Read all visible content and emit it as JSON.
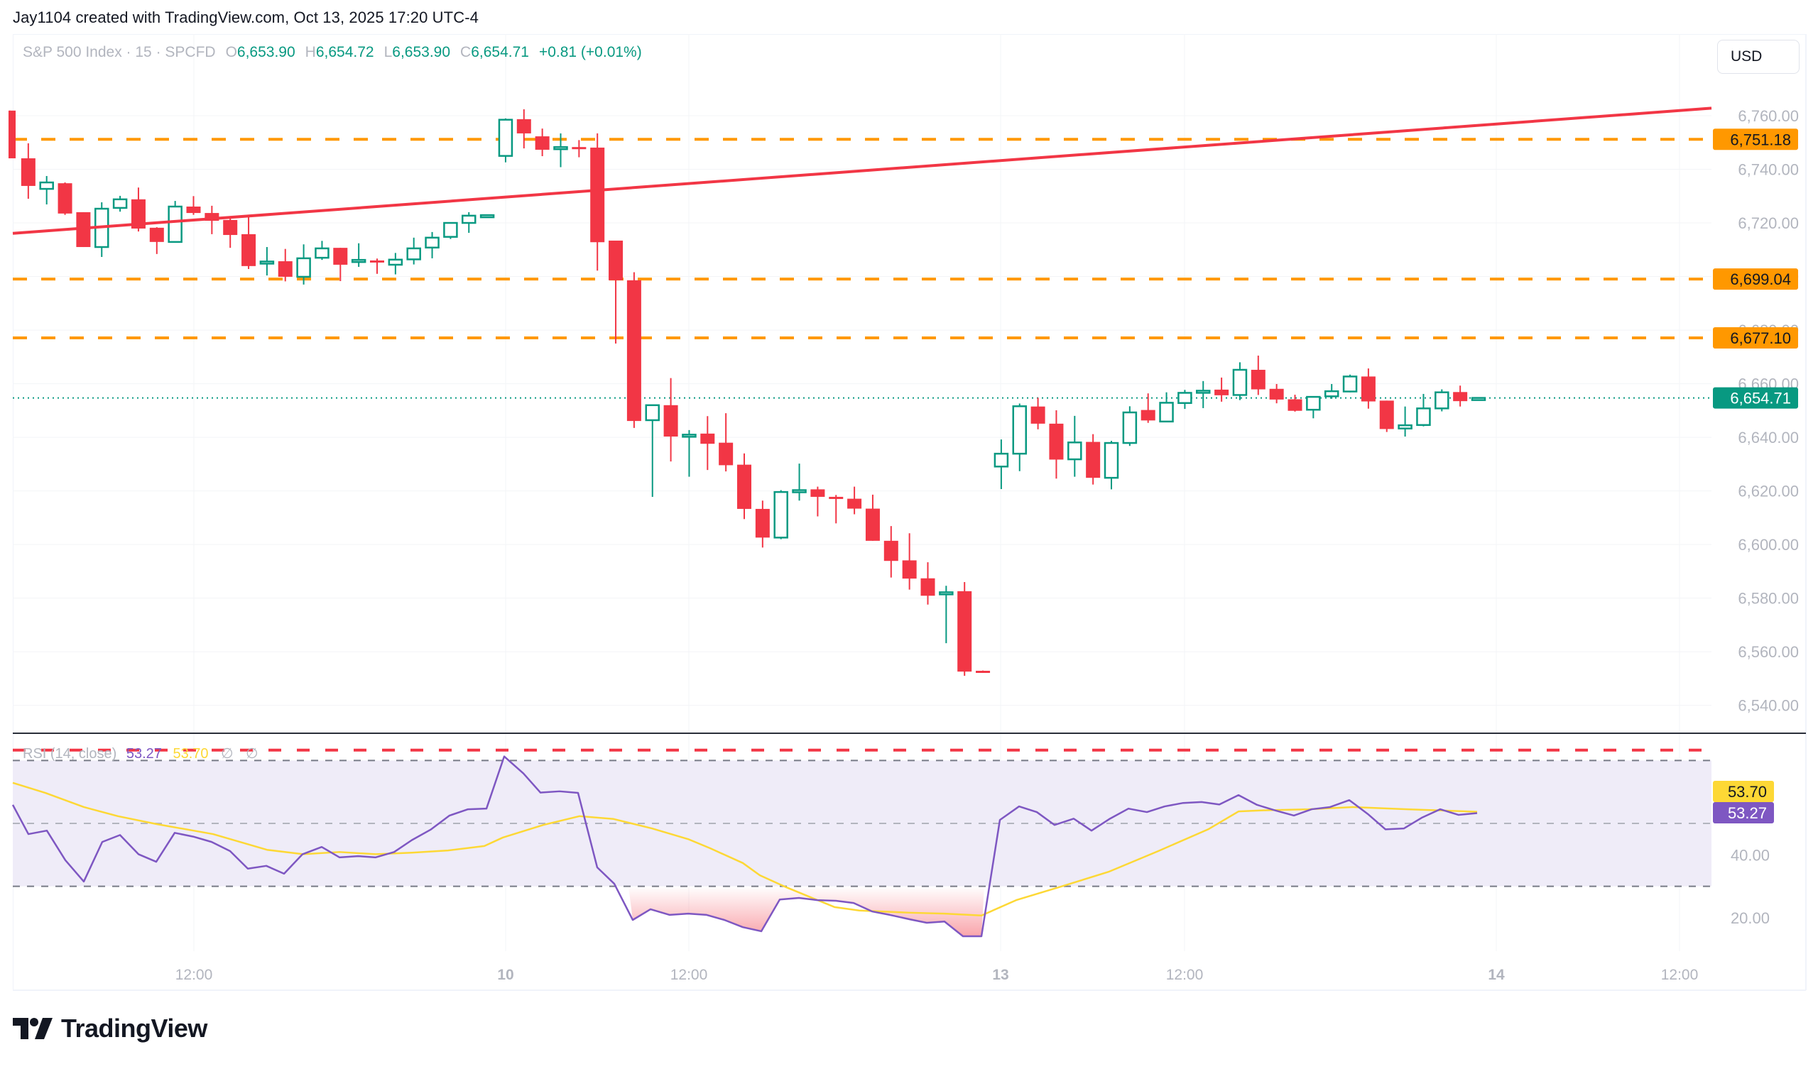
{
  "credit": "Jay1104 created with TradingView.com, Oct 13, 2025 17:20 UTC-4",
  "legend": {
    "symbol": "S&P 500 Index · 15 · SPCFD",
    "open_key": "O",
    "open": "6,653.90",
    "high_key": "H",
    "high": "6,654.72",
    "low_key": "L",
    "low": "6,653.90",
    "close_key": "C",
    "close": "6,654.71",
    "change": "+0.81 (+0.01%)"
  },
  "currency_button": "USD",
  "rsi_legend": {
    "title": "RSI (14, close)",
    "rsi_value": "53.27",
    "signal_value": "53.70",
    "extra1": "∅",
    "extra2": "∅"
  },
  "brand": {
    "name": "TradingView"
  },
  "colors": {
    "up": "#089981",
    "down": "#f23645",
    "trendline": "#f23645",
    "level": "#ff9800",
    "rsi": "#7e57c2",
    "signal": "#fdd835",
    "rsi_band": "#efecf8",
    "last_price": "#089981"
  },
  "chart_data": [
    {
      "type": "candlestick",
      "title": "S&P 500 Index · 15 · SPCFD",
      "interval": "15",
      "ylabel": "USD",
      "ylim": [
        6530,
        6775
      ],
      "y_ticks": [
        6540,
        6560,
        6580,
        6600,
        6620,
        6640,
        6660,
        6680,
        6700,
        6720,
        6740,
        6760
      ],
      "y_tick_labels": [
        "6,540.00",
        "6,560.00",
        "6,580.00",
        "6,600.00",
        "6,620.00",
        "6,640.00",
        "6,660.00",
        "6,680.00",
        "6,700.00",
        "6,720.00",
        "6,740.00",
        "6,760.00"
      ],
      "x_tick_labels": [
        {
          "label": "12:00",
          "x": 273,
          "bold": false
        },
        {
          "label": "10",
          "x": 712,
          "bold": true
        },
        {
          "label": "12:00",
          "x": 970,
          "bold": false
        },
        {
          "label": "13",
          "x": 1409,
          "bold": true
        },
        {
          "label": "12:00",
          "x": 1668,
          "bold": false
        },
        {
          "label": "14",
          "x": 2107,
          "bold": true
        },
        {
          "label": "12:00",
          "x": 2365,
          "bold": false
        }
      ],
      "grid": true,
      "candles_ohlc": [
        [
          6761.9,
          6761.9,
          6744.1,
          6744.1
        ],
        [
          6744.1,
          6749.7,
          6729.0,
          6733.8
        ],
        [
          6732.7,
          6737.5,
          6726.9,
          6735.1
        ],
        [
          6734.8,
          6735.1,
          6723.0,
          6723.5
        ],
        [
          6724.0,
          6724.0,
          6711.0,
          6711.0
        ],
        [
          6711.0,
          6727.7,
          6707.3,
          6725.3
        ],
        [
          6725.6,
          6730.1,
          6724.2,
          6728.8
        ],
        [
          6728.8,
          6733.2,
          6716.8,
          6717.9
        ],
        [
          6718.2,
          6718.4,
          6708.4,
          6712.9
        ],
        [
          6712.9,
          6728.2,
          6712.9,
          6726.1
        ],
        [
          6726.1,
          6730.0,
          6723.0,
          6723.7
        ],
        [
          6723.7,
          6726.4,
          6715.8,
          6720.8
        ],
        [
          6721.1,
          6722.4,
          6710.7,
          6715.5
        ],
        [
          6715.8,
          6722.4,
          6702.8,
          6703.9
        ],
        [
          6704.8,
          6711.0,
          6700.4,
          6705.6
        ],
        [
          6705.7,
          6710.3,
          6698.2,
          6699.9
        ],
        [
          6699.9,
          6712.0,
          6697.0,
          6706.8
        ],
        [
          6707.0,
          6713.3,
          6706.2,
          6710.5
        ],
        [
          6710.7,
          6710.7,
          6698.3,
          6704.4
        ],
        [
          6705.5,
          6712.4,
          6703.6,
          6706.2
        ],
        [
          6706.0,
          6706.7,
          6701.0,
          6705.5
        ],
        [
          6704.4,
          6708.8,
          6700.8,
          6706.3
        ],
        [
          6706.4,
          6714.5,
          6704.5,
          6710.5
        ],
        [
          6710.8,
          6716.6,
          6706.8,
          6714.5
        ],
        [
          6714.8,
          6720.0,
          6714.0,
          6720.0
        ],
        [
          6720.0,
          6724.0,
          6716.3,
          6722.7
        ],
        [
          6722.7,
          6723.0,
          6722.6,
          6722.9
        ],
        [
          6745.0,
          6759.0,
          6742.6,
          6758.5
        ],
        [
          6758.7,
          6762.4,
          6747.8,
          6753.4
        ],
        [
          6752.3,
          6755.2,
          6744.9,
          6747.3
        ],
        [
          6747.8,
          6753.4,
          6740.8,
          6748.3
        ],
        [
          6748.3,
          6750.9,
          6744.5,
          6747.8
        ],
        [
          6748.1,
          6753.4,
          6702.2,
          6712.8
        ],
        [
          6713.4,
          6713.4,
          6675.0,
          6698.6
        ],
        [
          6698.6,
          6701.6,
          6643.5,
          6646.1
        ],
        [
          6646.4,
          6652.0,
          6617.8,
          6652.0
        ],
        [
          6652.0,
          6662.1,
          6631.0,
          6640.3
        ],
        [
          6640.4,
          6642.7,
          6625.3,
          6641.0
        ],
        [
          6641.4,
          6647.9,
          6627.8,
          6637.6
        ],
        [
          6638.0,
          6649.0,
          6627.3,
          6629.6
        ],
        [
          6629.8,
          6634.0,
          6609.5,
          6613.3
        ],
        [
          6613.3,
          6616.4,
          6598.9,
          6602.6
        ],
        [
          6602.6,
          6620.3,
          6602.0,
          6619.6
        ],
        [
          6619.6,
          6630.2,
          6616.4,
          6620.3
        ],
        [
          6620.6,
          6621.6,
          6610.5,
          6617.8
        ],
        [
          6617.8,
          6618.5,
          6607.9,
          6617.1
        ],
        [
          6617.1,
          6621.6,
          6611.3,
          6613.4
        ],
        [
          6613.4,
          6618.6,
          6601.4,
          6601.4
        ],
        [
          6601.4,
          6606.9,
          6587.7,
          6593.9
        ],
        [
          6594.1,
          6604.2,
          6583.2,
          6587.3
        ],
        [
          6587.4,
          6593.4,
          6577.6,
          6580.9
        ],
        [
          6581.7,
          6584.6,
          6563.2,
          6582.2
        ],
        [
          6582.6,
          6586.0,
          6551.0,
          6552.6
        ],
        [
          6552.9,
          6553.0,
          6552.5,
          6552.6
        ],
        [
          6629.1,
          6639.2,
          6620.7,
          6633.9
        ],
        [
          6633.9,
          6652.6,
          6627.4,
          6651.6
        ],
        [
          6651.5,
          6654.8,
          6643.0,
          6645.1
        ],
        [
          6645.1,
          6650.1,
          6624.6,
          6631.7
        ],
        [
          6631.8,
          6648.0,
          6625.3,
          6638.1
        ],
        [
          6638.3,
          6641.2,
          6622.4,
          6624.9
        ],
        [
          6624.9,
          6638.7,
          6620.6,
          6637.9
        ],
        [
          6637.9,
          6651.6,
          6636.8,
          6649.3
        ],
        [
          6650.2,
          6656.4,
          6645.4,
          6646.3
        ],
        [
          6645.9,
          6656.8,
          6645.6,
          6652.9
        ],
        [
          6652.8,
          6657.7,
          6650.6,
          6656.6
        ],
        [
          6656.8,
          6661.0,
          6650.9,
          6657.4
        ],
        [
          6657.8,
          6662.3,
          6653.3,
          6655.7
        ],
        [
          6655.8,
          6668.0,
          6653.9,
          6665.2
        ],
        [
          6665.2,
          6670.5,
          6655.8,
          6657.9
        ],
        [
          6658.1,
          6659.9,
          6652.7,
          6654.1
        ],
        [
          6654.2,
          6655.9,
          6649.6,
          6649.9
        ],
        [
          6650.3,
          6655.1,
          6647.1,
          6655.1
        ],
        [
          6655.3,
          6659.9,
          6654.4,
          6657.2
        ],
        [
          6657.1,
          6663.4,
          6656.8,
          6662.7
        ],
        [
          6662.7,
          6665.7,
          6650.7,
          6653.4
        ],
        [
          6653.7,
          6653.7,
          6642.0,
          6643.1
        ],
        [
          6643.3,
          6651.5,
          6640.3,
          6644.5
        ],
        [
          6644.6,
          6656.2,
          6644.1,
          6650.8
        ],
        [
          6650.8,
          6657.9,
          6649.7,
          6656.8
        ],
        [
          6656.9,
          6659.3,
          6651.5,
          6653.5
        ],
        [
          6653.9,
          6654.72,
          6653.9,
          6654.71
        ]
      ],
      "candle_first_x": 14,
      "candle_spacing": 25.85,
      "horizontal_levels": [
        {
          "price": 6751.18,
          "label": "6,751.18",
          "style": "dashed",
          "color": "#ff9800"
        },
        {
          "price": 6699.04,
          "label": "6,699.04",
          "style": "dashed",
          "color": "#ff9800"
        },
        {
          "price": 6677.1,
          "label": "6,677.10",
          "style": "dashed",
          "color": "#ff9800"
        }
      ],
      "last_price": {
        "price": 6654.71,
        "label": "6,654.71"
      },
      "trendline": {
        "from": {
          "x": 18,
          "price": 6716.1
        },
        "to": {
          "x": 2410,
          "price": 6762.8
        },
        "color": "#f23645"
      }
    },
    {
      "type": "line",
      "title": "RSI (14, close)",
      "ylim": [
        10,
        85
      ],
      "y_ticks": [
        20,
        40
      ],
      "y_tick_labels": [
        "20.00",
        "40.00"
      ],
      "bands": {
        "upper": 70,
        "middle": 50,
        "lower": 30,
        "extra_red_dashed": 73.3
      },
      "series": [
        {
          "name": "RSI",
          "color": "#7e57c2",
          "last": 53.27,
          "points": [
            [
              18,
              55.9
            ],
            [
              40,
              46.6
            ],
            [
              66,
              47.7
            ],
            [
              92,
              38.3
            ],
            [
              118,
              31.5
            ],
            [
              144,
              44.1
            ],
            [
              169,
              46.3
            ],
            [
              195,
              40.2
            ],
            [
              220,
              37.8
            ],
            [
              246,
              47.0
            ],
            [
              272,
              45.8
            ],
            [
              298,
              44.1
            ],
            [
              324,
              41.2
            ],
            [
              349,
              35.6
            ],
            [
              375,
              36.5
            ],
            [
              400,
              34.0
            ],
            [
              426,
              40.2
            ],
            [
              453,
              42.5
            ],
            [
              478,
              39.2
            ],
            [
              504,
              39.6
            ],
            [
              529,
              39.2
            ],
            [
              555,
              40.9
            ],
            [
              580,
              44.7
            ],
            [
              607,
              48.1
            ],
            [
              633,
              52.5
            ],
            [
              659,
              54.5
            ],
            [
              685,
              54.7
            ],
            [
              710,
              71.3
            ],
            [
              737,
              65.9
            ],
            [
              761,
              59.8
            ],
            [
              788,
              60.2
            ],
            [
              814,
              59.7
            ],
            [
              841,
              36.0
            ],
            [
              865,
              30.8
            ],
            [
              891,
              19.3
            ],
            [
              916,
              22.7
            ],
            [
              943,
              20.9
            ],
            [
              969,
              21.3
            ],
            [
              995,
              20.9
            ],
            [
              1020,
              19.3
            ],
            [
              1046,
              17.0
            ],
            [
              1072,
              15.7
            ],
            [
              1098,
              25.8
            ],
            [
              1125,
              26.3
            ],
            [
              1151,
              25.6
            ],
            [
              1177,
              25.4
            ],
            [
              1202,
              24.7
            ],
            [
              1228,
              22.0
            ],
            [
              1253,
              20.9
            ],
            [
              1281,
              19.5
            ],
            [
              1305,
              18.4
            ],
            [
              1330,
              18.8
            ],
            [
              1356,
              14.1
            ],
            [
              1382,
              14.1
            ],
            [
              1408,
              51.1
            ],
            [
              1435,
              55.4
            ],
            [
              1460,
              53.6
            ],
            [
              1485,
              49.5
            ],
            [
              1512,
              51.5
            ],
            [
              1537,
              47.7
            ],
            [
              1563,
              51.5
            ],
            [
              1589,
              54.7
            ],
            [
              1615,
              53.6
            ],
            [
              1640,
              55.4
            ],
            [
              1666,
              56.5
            ],
            [
              1692,
              56.8
            ],
            [
              1717,
              56.0
            ],
            [
              1744,
              59.0
            ],
            [
              1770,
              55.9
            ],
            [
              1796,
              54.1
            ],
            [
              1822,
              52.5
            ],
            [
              1847,
              54.5
            ],
            [
              1873,
              55.2
            ],
            [
              1900,
              57.4
            ],
            [
              1926,
              53.0
            ],
            [
              1951,
              48.1
            ],
            [
              1977,
              48.4
            ],
            [
              2002,
              51.8
            ],
            [
              2028,
              54.5
            ],
            [
              2054,
              52.7
            ],
            [
              2080,
              53.27
            ]
          ]
        },
        {
          "name": "RSI-based MA",
          "color": "#fdd835",
          "last": 53.7,
          "points": [
            [
              18,
              62.9
            ],
            [
              64,
              59.7
            ],
            [
              118,
              55.2
            ],
            [
              166,
              52.3
            ],
            [
              220,
              49.8
            ],
            [
              300,
              46.6
            ],
            [
              376,
              41.6
            ],
            [
              427,
              40.2
            ],
            [
              478,
              40.9
            ],
            [
              529,
              40.2
            ],
            [
              580,
              40.7
            ],
            [
              631,
              41.4
            ],
            [
              682,
              42.8
            ],
            [
              708,
              45.5
            ],
            [
              765,
              49.5
            ],
            [
              816,
              52.3
            ],
            [
              864,
              51.4
            ],
            [
              918,
              48.4
            ],
            [
              969,
              45.0
            ],
            [
              1000,
              42.1
            ],
            [
              1046,
              37.4
            ],
            [
              1070,
              33.5
            ],
            [
              1105,
              29.9
            ],
            [
              1175,
              23.4
            ],
            [
              1210,
              22.3
            ],
            [
              1281,
              21.6
            ],
            [
              1330,
              21.3
            ],
            [
              1382,
              20.7
            ],
            [
              1431,
              25.6
            ],
            [
              1491,
              29.7
            ],
            [
              1561,
              34.6
            ],
            [
              1631,
              41.2
            ],
            [
              1702,
              48.2
            ],
            [
              1744,
              53.8
            ],
            [
              1772,
              54.1
            ],
            [
              1842,
              54.5
            ],
            [
              1905,
              55.2
            ],
            [
              1982,
              54.5
            ],
            [
              2080,
              53.7
            ]
          ]
        }
      ]
    }
  ]
}
